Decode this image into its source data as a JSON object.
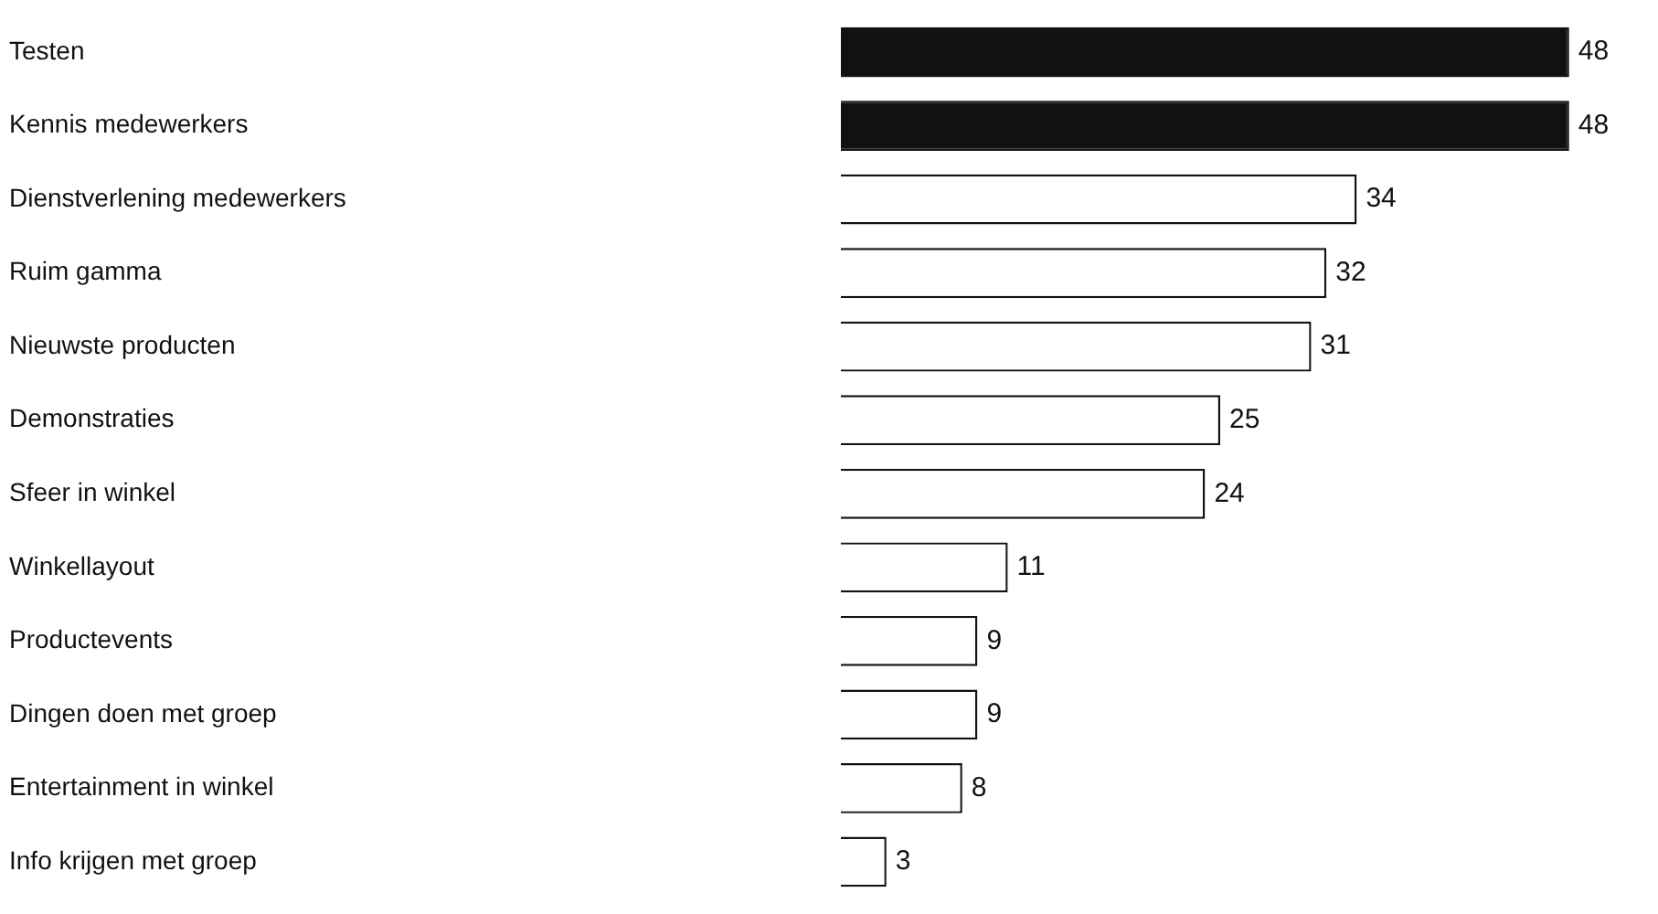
{
  "chart_data": {
    "type": "bar",
    "orientation": "horizontal",
    "categories": [
      "Testen",
      "Kennis medewerkers",
      "Dienstverlening medewerkers",
      "Ruim gamma",
      "Nieuwste producten",
      "Demonstraties",
      "Sfeer in winkel",
      "Winkellayout",
      "Productevents",
      "Dingen doen met groep",
      "Entertainment in winkel",
      "Info krijgen met groep"
    ],
    "values": [
      48,
      48,
      34,
      32,
      31,
      25,
      24,
      11,
      9,
      9,
      8,
      3
    ],
    "colors": [
      "#111111",
      "#111111",
      "#ffffff",
      "#ffffff",
      "#ffffff",
      "#ffffff",
      "#ffffff",
      "#ffffff",
      "#ffffff",
      "#ffffff",
      "#ffffff",
      "#ffffff"
    ],
    "data_labels": true,
    "legend": false,
    "grid": false
  }
}
